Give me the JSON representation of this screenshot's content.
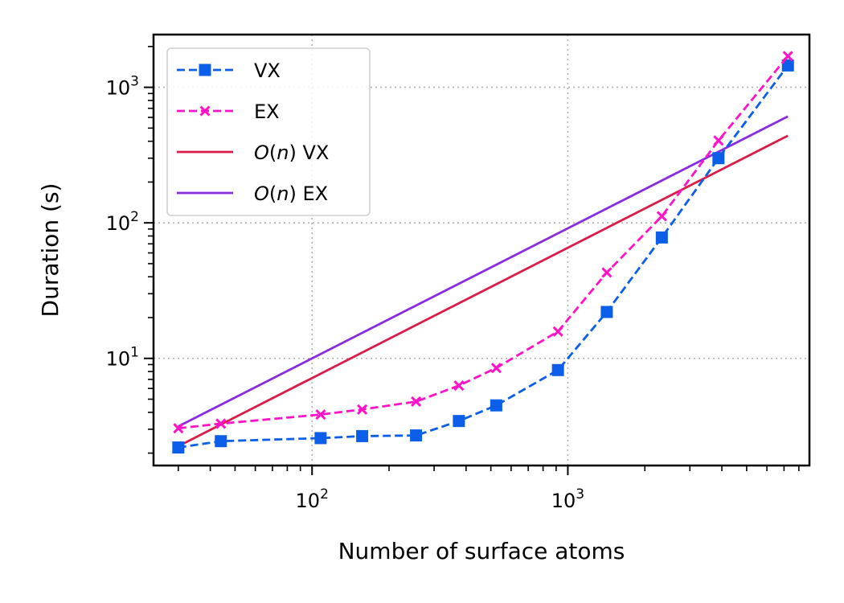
{
  "chart_data": {
    "type": "line",
    "xscale": "log",
    "yscale": "log",
    "xlabel": "Number of surface atoms",
    "ylabel": "Duration (s)",
    "xlim": [
      24,
      8800
    ],
    "ylim": [
      1.62,
      2450
    ],
    "x_major_ticks": [
      {
        "value": 100,
        "base": "10",
        "exp": "2"
      },
      {
        "value": 1000,
        "base": "10",
        "exp": "3"
      }
    ],
    "y_major_ticks": [
      {
        "value": 10,
        "base": "10",
        "exp": "1"
      },
      {
        "value": 100,
        "base": "10",
        "exp": "2"
      },
      {
        "value": 1000,
        "base": "10",
        "exp": "3"
      }
    ],
    "grid": true,
    "legend_position": "top-left",
    "series": [
      {
        "name": "VX",
        "color": "#0a5ee8",
        "style": "dashed",
        "marker": "square",
        "x": [
          30,
          44,
          108,
          157,
          255,
          375,
          525,
          915,
          1420,
          2330,
          3880,
          7250
        ],
        "y": [
          2.2,
          2.45,
          2.58,
          2.67,
          2.7,
          3.45,
          4.5,
          8.2,
          22,
          78,
          300,
          1450
        ]
      },
      {
        "name": "EX",
        "color": "#ff12c8",
        "style": "dashed",
        "marker": "x",
        "x": [
          30,
          44,
          108,
          157,
          255,
          375,
          525,
          915,
          1420,
          2330,
          3880,
          7250
        ],
        "y": [
          3.05,
          3.3,
          3.85,
          4.2,
          4.8,
          6.3,
          8.5,
          15.8,
          43,
          112,
          405,
          1700
        ]
      },
      {
        "name_prefix": "O",
        "name_arg": "n",
        "name_suffix": " VX",
        "color": "#dc1c46",
        "style": "solid",
        "marker": "none",
        "x": [
          30,
          7250
        ],
        "y": [
          2.25,
          440
        ]
      },
      {
        "name_prefix": "O",
        "name_arg": "n",
        "name_suffix": " EX",
        "color": "#8a2be2",
        "style": "solid",
        "marker": "none",
        "x": [
          30,
          7250
        ],
        "y": [
          3.15,
          610
        ]
      }
    ]
  }
}
